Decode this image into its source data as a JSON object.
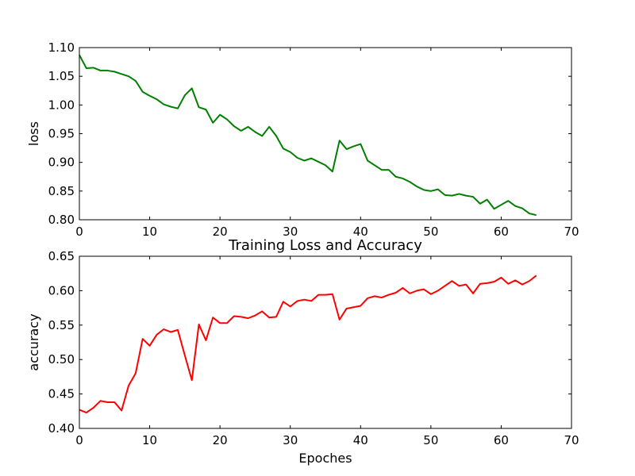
{
  "chart_data": [
    {
      "type": "line",
      "title": "",
      "xlabel": "",
      "ylabel": "loss",
      "xlim": [
        0,
        70
      ],
      "ylim": [
        0.8,
        1.1
      ],
      "xticks": [
        "0",
        "10",
        "20",
        "30",
        "40",
        "50",
        "60",
        "70"
      ],
      "yticks": [
        "0.80",
        "0.85",
        "0.90",
        "0.95",
        "1.00",
        "1.05",
        "1.10"
      ],
      "grid": false,
      "series": [
        {
          "name": "",
          "color": "#008000",
          "x": [
            0,
            1,
            2,
            3,
            4,
            5,
            6,
            7,
            8,
            9,
            10,
            11,
            12,
            13,
            14,
            15,
            16,
            17,
            18,
            19,
            20,
            21,
            22,
            23,
            24,
            25,
            26,
            27,
            28,
            29,
            30,
            31,
            32,
            33,
            34,
            35,
            36,
            37,
            38,
            39,
            40,
            41,
            42,
            43,
            44,
            45,
            46,
            47,
            48,
            49,
            50,
            51,
            52,
            53,
            54,
            55,
            56,
            57,
            58,
            59,
            60,
            61,
            62,
            63,
            64,
            65
          ],
          "y": [
            1.087,
            1.064,
            1.065,
            1.06,
            1.06,
            1.058,
            1.054,
            1.05,
            1.042,
            1.023,
            1.016,
            1.01,
            1.001,
            0.997,
            0.994,
            1.017,
            1.029,
            0.996,
            0.992,
            0.969,
            0.983,
            0.975,
            0.963,
            0.955,
            0.962,
            0.953,
            0.946,
            0.962,
            0.946,
            0.924,
            0.918,
            0.908,
            0.903,
            0.907,
            0.901,
            0.895,
            0.884,
            0.938,
            0.923,
            0.928,
            0.932,
            0.903,
            0.895,
            0.887,
            0.887,
            0.875,
            0.872,
            0.866,
            0.858,
            0.852,
            0.85,
            0.853,
            0.843,
            0.842,
            0.845,
            0.842,
            0.84,
            0.828,
            0.835,
            0.819,
            0.826,
            0.833,
            0.824,
            0.82,
            0.811,
            0.808
          ]
        }
      ]
    },
    {
      "type": "line",
      "title": "Training Loss and Accuracy",
      "xlabel": "Epoches",
      "ylabel": "accuracy",
      "xlim": [
        0,
        70
      ],
      "ylim": [
        0.4,
        0.65
      ],
      "xticks": [
        "0",
        "10",
        "20",
        "30",
        "40",
        "50",
        "60",
        "70"
      ],
      "yticks": [
        "0.40",
        "0.45",
        "0.50",
        "0.55",
        "0.60",
        "0.65"
      ],
      "grid": false,
      "series": [
        {
          "name": "",
          "color": "#ff0000",
          "x": [
            0,
            1,
            2,
            3,
            4,
            5,
            6,
            7,
            8,
            9,
            10,
            11,
            12,
            13,
            14,
            15,
            16,
            17,
            18,
            19,
            20,
            21,
            22,
            23,
            24,
            25,
            26,
            27,
            28,
            29,
            30,
            31,
            32,
            33,
            34,
            35,
            36,
            37,
            38,
            39,
            40,
            41,
            42,
            43,
            44,
            45,
            46,
            47,
            48,
            49,
            50,
            51,
            52,
            53,
            54,
            55,
            56,
            57,
            58,
            59,
            60,
            61,
            62,
            63,
            64,
            65
          ],
          "y": [
            0.427,
            0.423,
            0.43,
            0.44,
            0.438,
            0.438,
            0.426,
            0.462,
            0.48,
            0.53,
            0.52,
            0.536,
            0.544,
            0.54,
            0.543,
            0.506,
            0.47,
            0.551,
            0.528,
            0.561,
            0.553,
            0.553,
            0.563,
            0.562,
            0.56,
            0.564,
            0.57,
            0.561,
            0.562,
            0.584,
            0.577,
            0.585,
            0.587,
            0.585,
            0.594,
            0.594,
            0.595,
            0.558,
            0.574,
            0.576,
            0.578,
            0.589,
            0.592,
            0.59,
            0.594,
            0.597,
            0.604,
            0.596,
            0.6,
            0.602,
            0.595,
            0.6,
            0.607,
            0.614,
            0.607,
            0.609,
            0.596,
            0.61,
            0.611,
            0.613,
            0.619,
            0.61,
            0.615,
            0.609,
            0.614,
            0.622
          ]
        }
      ]
    }
  ]
}
